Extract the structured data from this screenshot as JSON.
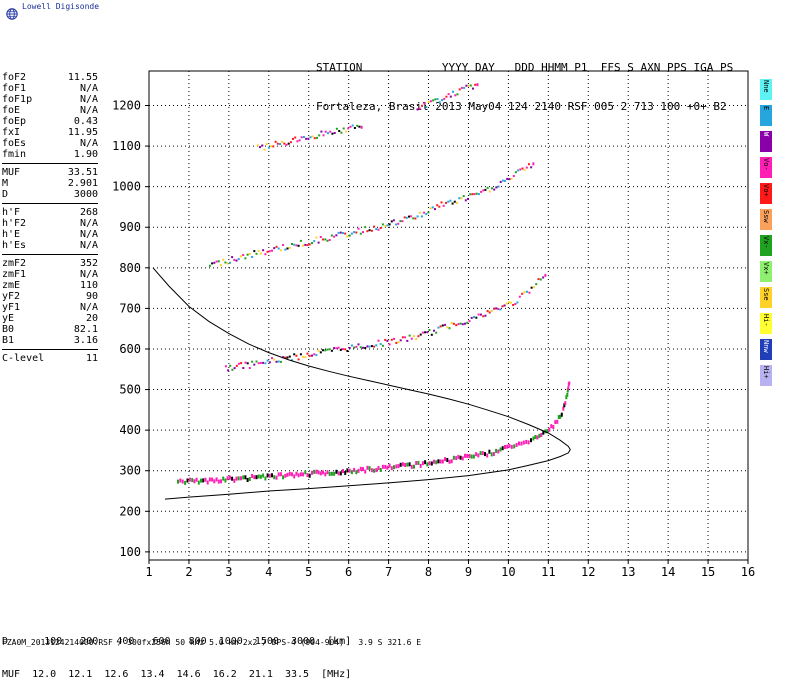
{
  "app": {
    "logo_text": "Lowell Digisonde"
  },
  "header": {
    "line1": "STATION            YYYY DAY   DDD HHMM P1  FFS S AXN PPS IGA PS",
    "line2": "Fortaleza, Brasil 2013 May04 124 2140 RSF 005 2 713 100 +0+ B2"
  },
  "params": {
    "group1": [
      {
        "key": "foF2",
        "value": "11.55"
      },
      {
        "key": "foF1",
        "value": "N/A"
      },
      {
        "key": "foF1p",
        "value": "N/A"
      },
      {
        "key": "foE",
        "value": "N/A"
      },
      {
        "key": "foEp",
        "value": "0.43"
      },
      {
        "key": "fxI",
        "value": "11.95"
      },
      {
        "key": "foEs",
        "value": "N/A"
      },
      {
        "key": "fmin",
        "value": "1.90"
      }
    ],
    "group2": [
      {
        "key": "MUF",
        "value": "33.51"
      },
      {
        "key": "M",
        "value": "2.901"
      },
      {
        "key": "D",
        "value": "3000"
      }
    ],
    "group3": [
      {
        "key": "h'F",
        "value": "268"
      },
      {
        "key": "h'F2",
        "value": "N/A"
      },
      {
        "key": "h'E",
        "value": "N/A"
      },
      {
        "key": "h'Es",
        "value": "N/A"
      }
    ],
    "group4": [
      {
        "key": "zmF2",
        "value": "352"
      },
      {
        "key": "zmF1",
        "value": "N/A"
      },
      {
        "key": "zmE",
        "value": "110"
      },
      {
        "key": "yF2",
        "value": "90"
      },
      {
        "key": "yF1",
        "value": "N/A"
      },
      {
        "key": "yE",
        "value": "20"
      },
      {
        "key": "B0",
        "value": "82.1"
      },
      {
        "key": "B1",
        "value": "3.16"
      }
    ],
    "group5": [
      {
        "key": "C-level",
        "value": "11"
      }
    ]
  },
  "legend": [
    {
      "label": "Nne",
      "color": "#5ff2f2"
    },
    {
      "label": "E",
      "color": "#25a6dc"
    },
    {
      "label": "W",
      "color": "#8a00a8"
    },
    {
      "label": "Vo-",
      "color": "#ff1fb5"
    },
    {
      "label": "Vo+",
      "color": "#ff1a1a"
    },
    {
      "label": "Ssw",
      "color": "#f9a15c"
    },
    {
      "label": "Vx-",
      "color": "#1fa21f"
    },
    {
      "label": "Vx+",
      "color": "#8ef06e"
    },
    {
      "label": "Sse",
      "color": "#ffd22a"
    },
    {
      "label": "Hi-",
      "color": "#ffff33"
    },
    {
      "label": "Nnw",
      "color": "#223db8"
    },
    {
      "label": "Hi+",
      "color": "#b9b2f0"
    }
  ],
  "distance_table": {
    "row1": "D      100   200   400   600   800  1000  1500  3000  [km]",
    "row2": "MUF  12.0  12.1  12.6  13.4  14.6  16.2  21.1  33.5  [MHz]"
  },
  "footer": {
    "text": "FZA0M_2013124214000.RSF / 300fx256h 50 kHz 5.0 km 2x2 / DPS-4 (904-904)   3.9 S 321.6 E"
  },
  "chart_data": {
    "type": "scatter",
    "xlim": [
      1,
      16
    ],
    "ylim": [
      80,
      1285
    ],
    "x_ticks": [
      1,
      2,
      3,
      4,
      5,
      6,
      7,
      8,
      9,
      10,
      11,
      12,
      13,
      14,
      15,
      16
    ],
    "y_ticks": [
      100,
      200,
      300,
      400,
      500,
      600,
      700,
      800,
      900,
      1000,
      1100,
      1200
    ],
    "grid": true,
    "traces": [
      {
        "name": "F2 trace",
        "points": [
          [
            1.7,
            278
          ],
          [
            2.0,
            279
          ],
          [
            2.5,
            281
          ],
          [
            3.0,
            284
          ],
          [
            3.5,
            287
          ],
          [
            4.0,
            290
          ],
          [
            4.5,
            293
          ],
          [
            5.0,
            297
          ],
          [
            5.5,
            301
          ],
          [
            6.0,
            305
          ],
          [
            6.5,
            308
          ],
          [
            7.0,
            313
          ],
          [
            7.5,
            318
          ],
          [
            8.0,
            324
          ],
          [
            8.5,
            331
          ],
          [
            9.0,
            339
          ],
          [
            9.5,
            347
          ],
          [
            10.0,
            362
          ],
          [
            10.3,
            370
          ],
          [
            10.6,
            383
          ],
          [
            10.8,
            393
          ],
          [
            11.0,
            405
          ],
          [
            11.2,
            425
          ],
          [
            11.35,
            455
          ],
          [
            11.45,
            495
          ],
          [
            11.5,
            520
          ]
        ]
      },
      {
        "name": "2nd hop trace",
        "points": [
          [
            2.9,
            556
          ],
          [
            3.5,
            563
          ],
          [
            4.0,
            572
          ],
          [
            4.5,
            580
          ],
          [
            5.0,
            589
          ],
          [
            5.5,
            597
          ],
          [
            6.0,
            605
          ],
          [
            6.5,
            612
          ],
          [
            7.0,
            620
          ],
          [
            7.5,
            628
          ],
          [
            8.0,
            642
          ],
          [
            8.5,
            660
          ],
          [
            9.0,
            675
          ],
          [
            9.4,
            688
          ],
          [
            10.2,
            722
          ],
          [
            10.5,
            745
          ],
          [
            10.9,
            785
          ]
        ]
      },
      {
        "name": "3rd hop trace",
        "points": [
          [
            2.5,
            808
          ],
          [
            3.0,
            822
          ],
          [
            3.5,
            834
          ],
          [
            4.0,
            845
          ],
          [
            4.5,
            856
          ],
          [
            5.0,
            866
          ],
          [
            5.5,
            877
          ],
          [
            6.0,
            887
          ],
          [
            6.5,
            898
          ],
          [
            7.0,
            909
          ],
          [
            7.7,
            930
          ],
          [
            8.3,
            958
          ],
          [
            8.8,
            970
          ],
          [
            9.4,
            990
          ],
          [
            10.0,
            1022
          ],
          [
            10.6,
            1060
          ]
        ]
      },
      {
        "name": "4th hop trace",
        "points": [
          [
            3.7,
            1097
          ],
          [
            4.2,
            1107
          ],
          [
            4.8,
            1120
          ],
          [
            5.4,
            1135
          ],
          [
            6.3,
            1150
          ]
        ]
      },
      {
        "name": "5th hop trace",
        "points": [
          [
            7.7,
            1195
          ],
          [
            8.2,
            1215
          ],
          [
            8.7,
            1235
          ],
          [
            9.2,
            1255
          ]
        ]
      }
    ],
    "profile_curve": [
      [
        1.1,
        800
      ],
      [
        1.5,
        755
      ],
      [
        2.0,
        705
      ],
      [
        2.5,
        668
      ],
      [
        3.0,
        638
      ],
      [
        3.5,
        612
      ],
      [
        4.0,
        591
      ],
      [
        4.5,
        573
      ],
      [
        5.0,
        558
      ],
      [
        5.5,
        545
      ],
      [
        6.0,
        533
      ],
      [
        6.5,
        522
      ],
      [
        7.0,
        511
      ],
      [
        7.5,
        500
      ],
      [
        8.0,
        489
      ],
      [
        8.5,
        477
      ],
      [
        9.0,
        464
      ],
      [
        9.5,
        449
      ],
      [
        10.0,
        433
      ],
      [
        10.5,
        414
      ],
      [
        11.0,
        393
      ],
      [
        11.3,
        375
      ],
      [
        11.5,
        360
      ],
      [
        11.55,
        352
      ],
      [
        11.5,
        344
      ],
      [
        11.3,
        335
      ],
      [
        11.0,
        325
      ],
      [
        10.5,
        313
      ],
      [
        10.0,
        302
      ],
      [
        9.0,
        288
      ],
      [
        8.0,
        278
      ],
      [
        7.0,
        270
      ],
      [
        6.0,
        263
      ],
      [
        5.0,
        256
      ],
      [
        4.0,
        250
      ],
      [
        3.0,
        242
      ],
      [
        2.0,
        235
      ],
      [
        1.4,
        230
      ]
    ]
  }
}
